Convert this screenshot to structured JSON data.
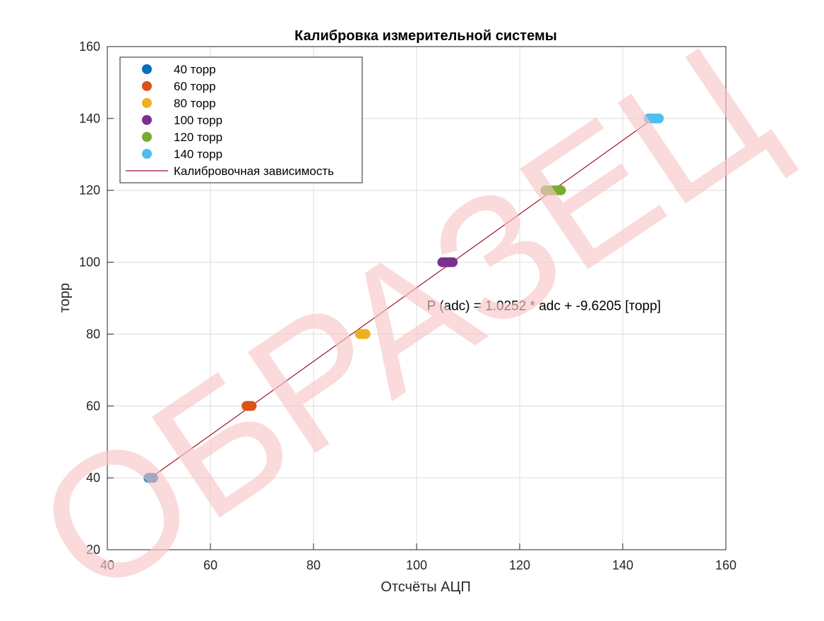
{
  "watermark": {
    "text": "ОБРАЗЕЦ",
    "color": "#f7c6c6"
  },
  "chart_data": {
    "type": "scatter",
    "title": "Калибровка измерительной системы",
    "xlabel": "Отсчёты АЦП",
    "ylabel": "торр",
    "xlim": [
      40,
      160
    ],
    "ylim": [
      20,
      160
    ],
    "xticks": [
      "40",
      "60",
      "80",
      "100",
      "120",
      "140",
      "160"
    ],
    "yticks": [
      "20",
      "40",
      "60",
      "80",
      "100",
      "120",
      "140",
      "160"
    ],
    "grid": true,
    "legend_position": "top-left",
    "series": [
      {
        "name": "40 торр",
        "color": "#0072bd",
        "x": [
          48.0,
          48.3,
          48.6,
          48.9
        ],
        "y": [
          40,
          40,
          40,
          40
        ]
      },
      {
        "name": "60 торр",
        "color": "#d95319",
        "x": [
          67.0,
          67.3,
          67.7,
          68.0
        ],
        "y": [
          60,
          60,
          60,
          60
        ]
      },
      {
        "name": "80 торр",
        "color": "#edb120",
        "x": [
          89.0,
          89.4,
          89.8,
          90.1
        ],
        "y": [
          80,
          80,
          80,
          80
        ]
      },
      {
        "name": "100 торр",
        "color": "#7e2f8e",
        "x": [
          105.0,
          105.5,
          106.0,
          106.5,
          107.0
        ],
        "y": [
          100,
          100,
          100,
          100,
          100
        ]
      },
      {
        "name": "120 торр",
        "color": "#77ac30",
        "x": [
          125.0,
          125.6,
          126.2,
          126.8,
          127.4,
          128.0
        ],
        "y": [
          120,
          120,
          120,
          120,
          120,
          120
        ]
      },
      {
        "name": "140 торр",
        "color": "#4dbeee",
        "x": [
          145.0,
          145.5,
          146.0,
          146.5,
          147.0
        ],
        "y": [
          140,
          140,
          140,
          140,
          140
        ]
      }
    ],
    "fit": {
      "name": "Калибровочная зависимость",
      "color": "#a2142f",
      "slope": 1.0252,
      "intercept": -9.6205,
      "x_range": [
        48.4,
        146.8
      ]
    },
    "annotation": {
      "text": "P (adc) = 1.0252 * adc + -9.6205 [торр]",
      "x": 102,
      "y": 88
    }
  }
}
